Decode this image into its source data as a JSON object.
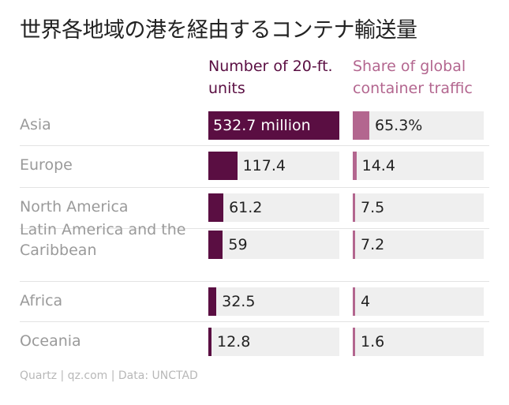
{
  "title": "世界各地域の港を経由するコンテナ輸送量",
  "source": "Quartz | qz.com | Data: UNCTAD",
  "chart_data": {
    "type": "bar",
    "categories": [
      "Asia",
      "Europe",
      "North America",
      "Latin America and the Caribbean",
      "Africa",
      "Oceania"
    ],
    "series": [
      {
        "name": "Number of 20-ft. units",
        "values": [
          532.7,
          117.4,
          61.2,
          59,
          32.5,
          12.8
        ],
        "labels": [
          "532.7 million",
          "117.4",
          "61.2",
          "59",
          "32.5",
          "12.8"
        ],
        "color": "#5a0e42"
      },
      {
        "name": "Share of global container traffic",
        "values": [
          65.3,
          14.4,
          7.5,
          7.2,
          4,
          1.6
        ],
        "labels": [
          "65.3%",
          "14.4",
          "7.5",
          "7.2",
          "4",
          "1.6"
        ],
        "color": "#b3668f"
      }
    ],
    "label_colors": {
      "inside_bar": "#ffffff",
      "outside_bar": "#222222"
    },
    "track_color": "#efefef"
  }
}
